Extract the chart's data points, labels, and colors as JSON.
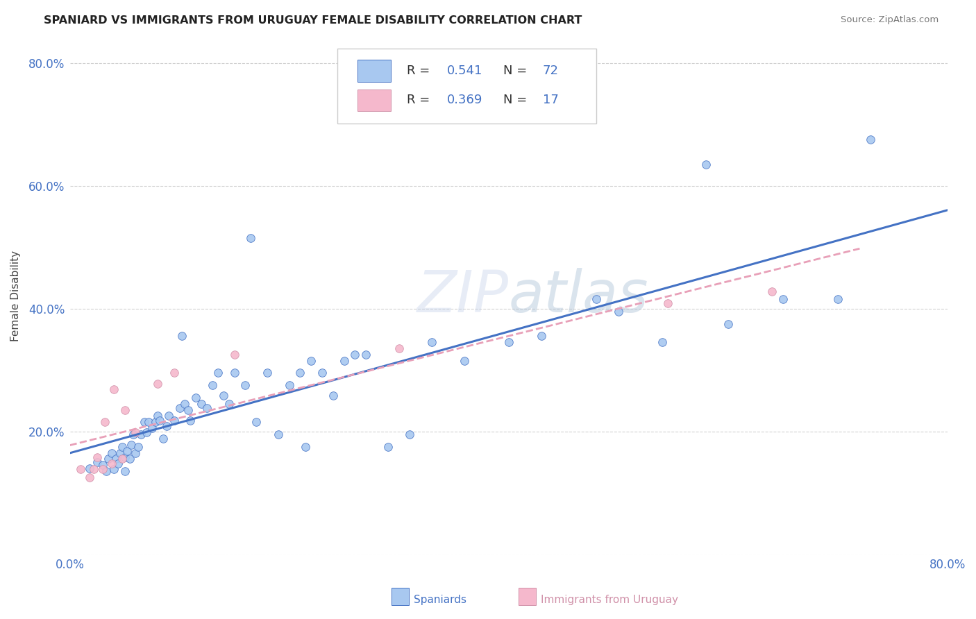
{
  "title": "SPANIARD VS IMMIGRANTS FROM URUGUAY FEMALE DISABILITY CORRELATION CHART",
  "source": "Source: ZipAtlas.com",
  "ylabel": "Female Disability",
  "r1": 0.541,
  "n1": 72,
  "r2": 0.369,
  "n2": 17,
  "color1": "#a8c8f0",
  "color2": "#f5b8cc",
  "line_color1": "#4472c4",
  "line_color2": "#e8a0b8",
  "axis_color": "#4472c4",
  "legend_label1": "Spaniards",
  "legend_label2": "Immigrants from Uruguay",
  "xlim": [
    0.0,
    0.8
  ],
  "ylim": [
    0.0,
    0.84
  ],
  "spaniards_x": [
    0.018,
    0.025,
    0.03,
    0.033,
    0.035,
    0.038,
    0.04,
    0.042,
    0.044,
    0.046,
    0.048,
    0.05,
    0.05,
    0.052,
    0.055,
    0.056,
    0.058,
    0.06,
    0.062,
    0.065,
    0.068,
    0.07,
    0.072,
    0.075,
    0.078,
    0.08,
    0.082,
    0.085,
    0.088,
    0.09,
    0.095,
    0.1,
    0.102,
    0.105,
    0.108,
    0.11,
    0.115,
    0.12,
    0.125,
    0.13,
    0.135,
    0.14,
    0.145,
    0.15,
    0.16,
    0.165,
    0.17,
    0.18,
    0.19,
    0.2,
    0.21,
    0.215,
    0.22,
    0.23,
    0.24,
    0.25,
    0.26,
    0.27,
    0.29,
    0.31,
    0.33,
    0.36,
    0.4,
    0.43,
    0.48,
    0.5,
    0.54,
    0.58,
    0.6,
    0.65,
    0.7,
    0.73
  ],
  "spaniards_y": [
    0.14,
    0.15,
    0.145,
    0.135,
    0.155,
    0.165,
    0.138,
    0.155,
    0.148,
    0.165,
    0.175,
    0.135,
    0.158,
    0.168,
    0.155,
    0.178,
    0.195,
    0.165,
    0.175,
    0.195,
    0.215,
    0.198,
    0.215,
    0.205,
    0.215,
    0.225,
    0.218,
    0.188,
    0.208,
    0.225,
    0.218,
    0.238,
    0.355,
    0.245,
    0.235,
    0.218,
    0.255,
    0.245,
    0.238,
    0.275,
    0.295,
    0.258,
    0.245,
    0.295,
    0.275,
    0.515,
    0.215,
    0.295,
    0.195,
    0.275,
    0.295,
    0.175,
    0.315,
    0.295,
    0.258,
    0.315,
    0.325,
    0.325,
    0.175,
    0.195,
    0.345,
    0.315,
    0.345,
    0.355,
    0.415,
    0.395,
    0.345,
    0.635,
    0.375,
    0.415,
    0.415,
    0.675
  ],
  "uruguay_x": [
    0.01,
    0.018,
    0.022,
    0.025,
    0.03,
    0.032,
    0.038,
    0.04,
    0.048,
    0.05,
    0.06,
    0.08,
    0.095,
    0.15,
    0.3,
    0.545,
    0.64
  ],
  "uruguay_y": [
    0.138,
    0.125,
    0.138,
    0.158,
    0.138,
    0.215,
    0.148,
    0.268,
    0.155,
    0.235,
    0.198,
    0.278,
    0.295,
    0.325,
    0.335,
    0.408,
    0.428
  ]
}
